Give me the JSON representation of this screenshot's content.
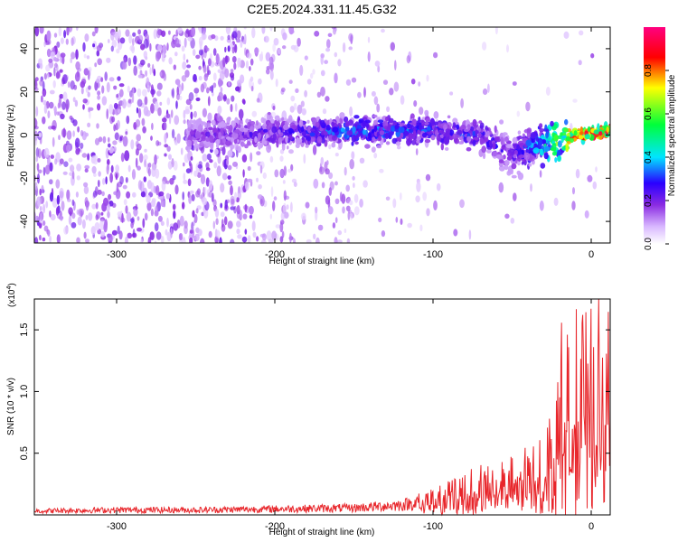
{
  "title": "C2E5.2024.331.11.45.G32",
  "chart_data": [
    {
      "type": "heatmap",
      "xlabel": "Height of straight line (km)",
      "ylabel": "Frequency (Hz)",
      "xlim": [
        -352,
        12
      ],
      "ylim": [
        -50,
        50
      ],
      "x_ticks": [
        -300,
        -200,
        -100,
        0
      ],
      "y_ticks": [
        -40,
        -20,
        0,
        20,
        40
      ],
      "colorbar": {
        "label": "Normalized spectral amplitude",
        "range": [
          0.0,
          1.0
        ],
        "ticks": [
          "0.0",
          "0.2",
          "0.4",
          "0.6",
          "0.8"
        ],
        "colormap": [
          "#ffffff",
          "#d9b8ff",
          "#8a2be2",
          "#2a00ff",
          "#00e5ff",
          "#00ff3a",
          "#ffff00",
          "#ff0000",
          "#ff0080"
        ]
      },
      "ridge": {
        "x": [
          -250,
          -200,
          -150,
          -100,
          -70,
          -50,
          -30,
          -10,
          12
        ],
        "freq": [
          0,
          1,
          2,
          2,
          0,
          -9,
          -4,
          0,
          2
        ],
        "amplitude": [
          0.2,
          0.25,
          0.35,
          0.3,
          0.3,
          0.25,
          0.45,
          0.8,
          0.9
        ]
      }
    },
    {
      "type": "line",
      "xlabel": "Height of straight line (km)",
      "ylabel": "SNR (10 * v/v)",
      "y_multiplier": "(x10",
      "y_multiplier_exp": "4",
      "xlim": [
        -352,
        12
      ],
      "ylim": [
        0,
        17500
      ],
      "x_ticks": [
        -300,
        -200,
        -100,
        0
      ],
      "y_ticks": [
        "0.5",
        "1.0",
        "1.5"
      ],
      "color": "#e8262b",
      "series": [
        {
          "x": [
            -352,
            -300,
            -250,
            -200,
            -150,
            -120,
            -100,
            -80,
            -70,
            -60,
            -50,
            -40,
            -30,
            -25,
            -20,
            -18,
            -15,
            -10,
            -5,
            0,
            5,
            12
          ],
          "y": [
            400,
            500,
            500,
            600,
            700,
            1000,
            1500,
            2500,
            3000,
            3200,
            3500,
            4000,
            4500,
            7000,
            10000,
            12000,
            11000,
            12500,
            13000,
            12500,
            13000,
            12000
          ]
        }
      ]
    }
  ]
}
